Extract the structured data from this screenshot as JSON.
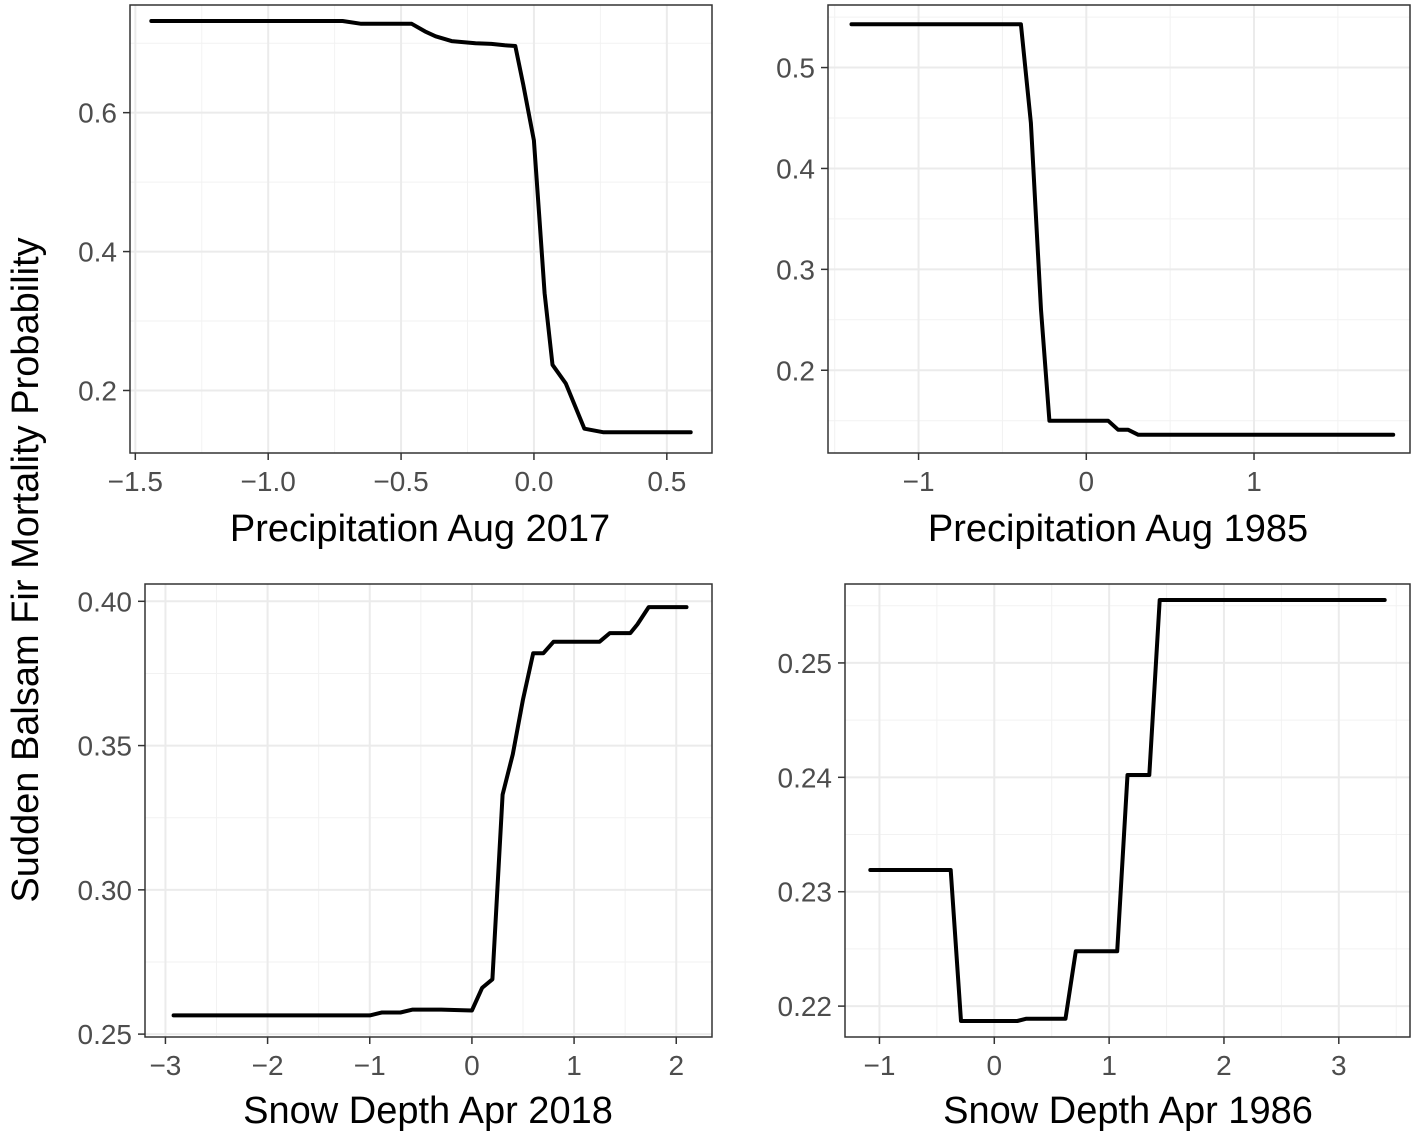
{
  "figure": {
    "ylabel": "Sudden Balsam Fir Mortality Probability",
    "colors": {
      "line": "#000000",
      "grid_major": "#ebebeb",
      "grid_minor": "#f2f2f2",
      "border": "#333333",
      "tick_text": "#4d4d4d"
    }
  },
  "chart_data": [
    {
      "type": "line",
      "title": "",
      "xlabel": "Precipitation Aug 2017",
      "ylabel": "Sudden Balsam Fir Mortality Probability",
      "xlim": [
        -1.52,
        0.67
      ],
      "ylim": [
        0.11,
        0.755
      ],
      "xticks": [
        -1.5,
        -1.0,
        -0.5,
        0.0,
        0.5
      ],
      "xtick_labels": [
        "−1.5",
        "−1.0",
        "−0.5",
        "0.0",
        "0.5"
      ],
      "yticks": [
        0.2,
        0.4,
        0.6
      ],
      "ytick_labels": [
        "0.2",
        "0.4",
        "0.6"
      ],
      "grid": true,
      "x": [
        -1.44,
        -0.72,
        -0.65,
        -0.46,
        -0.41,
        -0.37,
        -0.31,
        -0.22,
        -0.16,
        -0.11,
        -0.07,
        -0.04,
        0.0,
        0.02,
        0.04,
        0.07,
        0.12,
        0.19,
        0.26,
        0.59
      ],
      "y": [
        0.732,
        0.732,
        0.728,
        0.728,
        0.717,
        0.71,
        0.703,
        0.7,
        0.699,
        0.697,
        0.696,
        0.64,
        0.56,
        0.45,
        0.34,
        0.237,
        0.21,
        0.145,
        0.14,
        0.14
      ]
    },
    {
      "type": "line",
      "title": "",
      "xlabel": "Precipitation Aug 1985",
      "ylabel": "Sudden Balsam Fir Mortality Probability",
      "xlim": [
        -1.54,
        1.93
      ],
      "ylim": [
        0.118,
        0.562
      ],
      "xticks": [
        -1,
        0,
        1
      ],
      "xtick_labels": [
        "−1",
        "0",
        "1"
      ],
      "yticks": [
        0.2,
        0.3,
        0.4,
        0.5
      ],
      "ytick_labels": [
        "0.2",
        "0.3",
        "0.4",
        "0.5"
      ],
      "grid": true,
      "x": [
        -1.4,
        -0.39,
        -0.33,
        -0.27,
        -0.22,
        0.13,
        0.19,
        0.25,
        0.31,
        1.83
      ],
      "y": [
        0.543,
        0.543,
        0.445,
        0.26,
        0.15,
        0.15,
        0.141,
        0.141,
        0.136,
        0.136
      ]
    },
    {
      "type": "line",
      "title": "",
      "xlabel": "Snow Depth Apr 2018",
      "ylabel": "Sudden Balsam Fir Mortality Probability",
      "xlim": [
        -3.2,
        2.35
      ],
      "ylim": [
        0.249,
        0.406
      ],
      "xticks": [
        -3,
        -2,
        -1,
        0,
        1,
        2
      ],
      "xtick_labels": [
        "−3",
        "−2",
        "−1",
        "0",
        "1",
        "2"
      ],
      "yticks": [
        0.25,
        0.3,
        0.35,
        0.4
      ],
      "ytick_labels": [
        "0.25",
        "0.30",
        "0.35",
        "0.40"
      ],
      "grid": true,
      "x": [
        -2.92,
        -1.0,
        -0.88,
        -0.7,
        -0.58,
        -0.3,
        0.0,
        0.1,
        0.2,
        0.3,
        0.4,
        0.5,
        0.6,
        0.7,
        0.8,
        1.25,
        1.35,
        1.55,
        1.62,
        1.73,
        2.1
      ],
      "y": [
        0.2565,
        0.2565,
        0.2575,
        0.2575,
        0.2585,
        0.2585,
        0.2582,
        0.266,
        0.269,
        0.333,
        0.347,
        0.366,
        0.382,
        0.382,
        0.386,
        0.386,
        0.389,
        0.389,
        0.392,
        0.398,
        0.398
      ]
    },
    {
      "type": "line",
      "title": "",
      "xlabel": "Snow Depth Apr 1986",
      "ylabel": "Sudden Balsam Fir Mortality Probability",
      "xlim": [
        -1.3,
        3.62
      ],
      "ylim": [
        0.2173,
        0.2569
      ],
      "xticks": [
        -1,
        0,
        1,
        2,
        3
      ],
      "xtick_labels": [
        "−1",
        "0",
        "1",
        "2",
        "3"
      ],
      "yticks": [
        0.22,
        0.23,
        0.24,
        0.25
      ],
      "ytick_labels": [
        "0.22",
        "0.23",
        "0.24",
        "0.25"
      ],
      "grid": true,
      "x": [
        -1.08,
        -0.38,
        -0.29,
        0.2,
        0.28,
        0.62,
        0.71,
        1.07,
        1.16,
        1.35,
        1.44,
        3.4
      ],
      "y": [
        0.2319,
        0.2319,
        0.2187,
        0.2187,
        0.2189,
        0.2189,
        0.2248,
        0.2248,
        0.2402,
        0.2402,
        0.2555,
        0.2555
      ]
    }
  ]
}
